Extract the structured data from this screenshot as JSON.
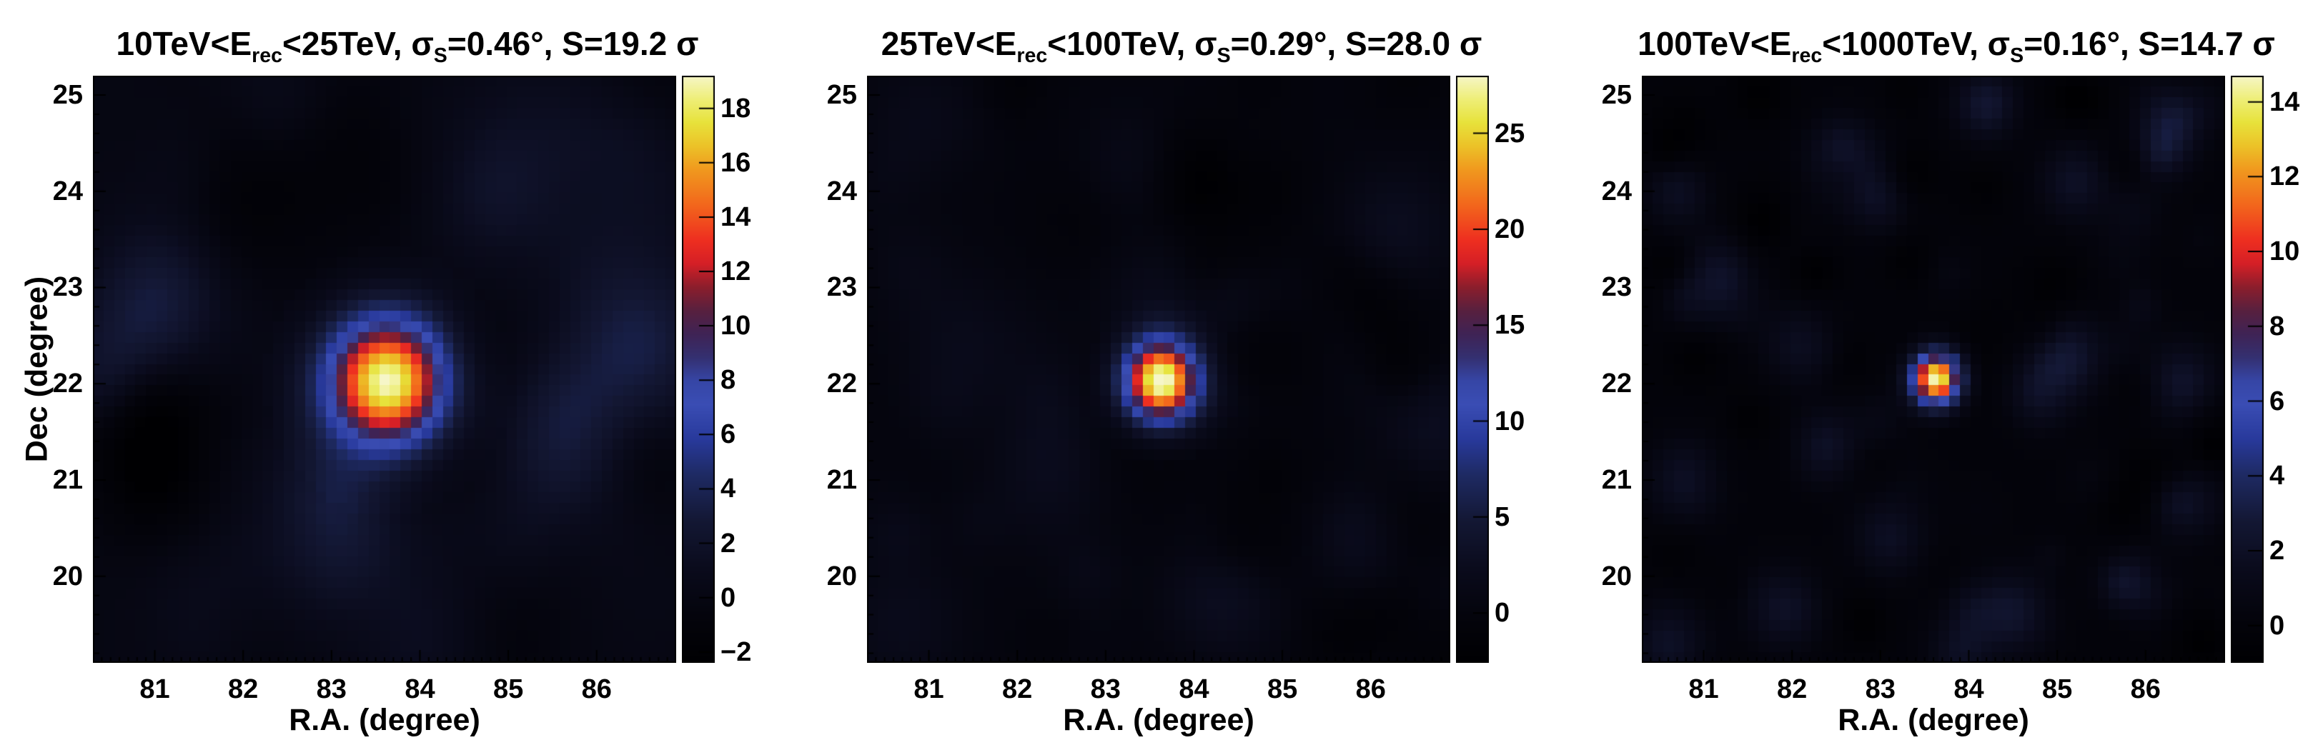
{
  "figure": {
    "xlabel": "R.A. (degree)",
    "ylabel": "Dec (degree)",
    "x_ticks": [
      81,
      82,
      83,
      84,
      85,
      86
    ],
    "y_ticks": [
      25,
      24,
      23,
      22,
      21,
      20
    ],
    "x_range": [
      80.3,
      86.9
    ],
    "y_range": [
      19.1,
      25.2
    ],
    "x_minor_step": 0.1,
    "y_minor_step": 0.2
  },
  "palette": {
    "description": "black-blue-red-yellow significance palette",
    "stops": [
      [
        0.0,
        "#000002"
      ],
      [
        0.08,
        "#04040c"
      ],
      [
        0.16,
        "#0a0b1c"
      ],
      [
        0.24,
        "#131733"
      ],
      [
        0.32,
        "#1e2a63"
      ],
      [
        0.38,
        "#28399b"
      ],
      [
        0.44,
        "#3a4db4"
      ],
      [
        0.48,
        "#3646a6"
      ],
      [
        0.52,
        "#343071"
      ],
      [
        0.56,
        "#3f2355"
      ],
      [
        0.6,
        "#58203f"
      ],
      [
        0.64,
        "#8c1e2c"
      ],
      [
        0.68,
        "#d51f26"
      ],
      [
        0.72,
        "#ee2f20"
      ],
      [
        0.78,
        "#f2671c"
      ],
      [
        0.84,
        "#f0991e"
      ],
      [
        0.88,
        "#ecc228"
      ],
      [
        0.92,
        "#e7e23b"
      ],
      [
        0.96,
        "#eeee78"
      ],
      [
        1.0,
        "#f6f6c8"
      ]
    ]
  },
  "chart_data": [
    {
      "type": "heatmap",
      "title": "10TeV<E_rec<25TeV, σ_S=0.46°, S=19.2 σ",
      "title_parts": {
        "p1": "10TeV<E",
        "s1": "rec",
        "p2": "<25TeV, σ",
        "s2": "S",
        "p3": "=0.46°, S=19.2 σ"
      },
      "energy_range_tev": [
        10,
        25
      ],
      "sigma_s_deg": 0.46,
      "significance_sigma": 19.2,
      "bins": 55,
      "colorbar": {
        "min": -2.4,
        "max": 19.2,
        "ticks": [
          -2,
          0,
          2,
          4,
          6,
          8,
          10,
          12,
          14,
          16,
          18
        ]
      },
      "source": {
        "ra": 83.63,
        "dec": 22.02,
        "sigma_deg": 0.46,
        "peak": 19.2
      },
      "noise_blobs": [
        [
          81.0,
          22.95,
          0.55,
          3.2
        ],
        [
          80.6,
          22.2,
          0.5,
          2.2
        ],
        [
          86.5,
          22.4,
          0.6,
          2.8
        ],
        [
          85.6,
          21.2,
          0.5,
          2.0
        ],
        [
          83.1,
          20.4,
          0.5,
          2.2
        ],
        [
          84.9,
          24.1,
          0.5,
          1.6
        ],
        [
          81.8,
          19.6,
          0.5,
          1.8
        ],
        [
          84.2,
          19.3,
          0.55,
          2.0
        ],
        [
          86.0,
          24.6,
          0.5,
          1.2
        ],
        [
          82.4,
          24.9,
          0.45,
          1.3
        ],
        [
          83.4,
          24.5,
          0.7,
          -1.5
        ],
        [
          82.0,
          23.8,
          0.6,
          -1.2
        ]
      ],
      "noise": {
        "seed": 11,
        "n": 60,
        "sigma": 0.45,
        "amp": 1.1
      }
    },
    {
      "type": "heatmap",
      "title": "25TeV<E_rec<100TeV, σ_S=0.29°, S=28.0 σ",
      "title_parts": {
        "p1": "25TeV<E",
        "s1": "rec",
        "p2": "<100TeV, σ",
        "s2": "S",
        "p3": "=0.29°, S=28.0 σ"
      },
      "energy_range_tev": [
        25,
        100
      ],
      "sigma_s_deg": 0.29,
      "significance_sigma": 28.0,
      "bins": 55,
      "colorbar": {
        "min": -2.6,
        "max": 28.0,
        "ticks": [
          0,
          5,
          10,
          15,
          20,
          25
        ]
      },
      "source": {
        "ra": 83.63,
        "dec": 22.02,
        "sigma_deg": 0.29,
        "peak": 28.0
      },
      "noise_blobs": [
        [
          86.3,
          23.6,
          0.45,
          2.6
        ],
        [
          85.9,
          20.2,
          0.4,
          2.2
        ],
        [
          84.4,
          19.8,
          0.45,
          2.4
        ],
        [
          81.4,
          22.4,
          0.5,
          1.8
        ],
        [
          80.7,
          19.5,
          0.5,
          2.0
        ],
        [
          83.3,
          24.3,
          0.4,
          1.6
        ],
        [
          80.9,
          24.8,
          0.45,
          1.5
        ],
        [
          86.6,
          21.4,
          0.4,
          1.8
        ],
        [
          82.3,
          20.9,
          0.5,
          1.5
        ],
        [
          83.6,
          23.0,
          0.45,
          2.0
        ]
      ],
      "noise": {
        "seed": 22,
        "n": 70,
        "sigma": 0.32,
        "amp": 1.2
      }
    },
    {
      "type": "heatmap",
      "title": "100TeV<E_rec<1000TeV, σ_S=0.16°, S=14.7 σ",
      "title_parts": {
        "p1": "100TeV<E",
        "s1": "rec",
        "p2": "<1000TeV, σ",
        "s2": "S",
        "p3": "=0.16°, S=14.7 σ"
      },
      "energy_range_tev": [
        100,
        1000
      ],
      "sigma_s_deg": 0.16,
      "significance_sigma": 14.7,
      "bins": 55,
      "colorbar": {
        "min": -1.0,
        "max": 14.7,
        "ticks": [
          0,
          2,
          4,
          6,
          8,
          10,
          12,
          14
        ]
      },
      "source": {
        "ra": 83.63,
        "dec": 22.05,
        "sigma_deg": 0.16,
        "draw_sigma_deg": 0.19,
        "peak": 14.7
      },
      "noise_blobs": [
        [
          84.2,
          24.9,
          0.25,
          2.6
        ],
        [
          82.6,
          24.3,
          0.3,
          2.2
        ],
        [
          85.2,
          24.1,
          0.28,
          2.0
        ],
        [
          81.2,
          23.1,
          0.3,
          2.2
        ],
        [
          80.7,
          24.0,
          0.25,
          1.8
        ],
        [
          86.2,
          24.6,
          0.25,
          2.0
        ],
        [
          83.0,
          23.9,
          0.25,
          1.6
        ],
        [
          86.4,
          22.0,
          0.3,
          2.4
        ],
        [
          85.1,
          22.3,
          0.3,
          2.6
        ],
        [
          84.8,
          21.9,
          0.25,
          2.0
        ],
        [
          82.1,
          22.4,
          0.28,
          1.8
        ],
        [
          80.8,
          21.0,
          0.3,
          2.0
        ],
        [
          82.4,
          21.4,
          0.25,
          1.6
        ],
        [
          83.1,
          20.4,
          0.28,
          1.8
        ],
        [
          84.5,
          19.6,
          0.3,
          2.2
        ],
        [
          85.9,
          19.9,
          0.28,
          2.0
        ],
        [
          81.9,
          19.7,
          0.3,
          2.4
        ],
        [
          83.9,
          19.2,
          0.25,
          1.8
        ],
        [
          86.5,
          20.8,
          0.28,
          1.8
        ],
        [
          80.6,
          19.3,
          0.3,
          2.0
        ]
      ],
      "noise": {
        "seed": 33,
        "n": 90,
        "sigma": 0.2,
        "amp": 1.0
      }
    }
  ]
}
